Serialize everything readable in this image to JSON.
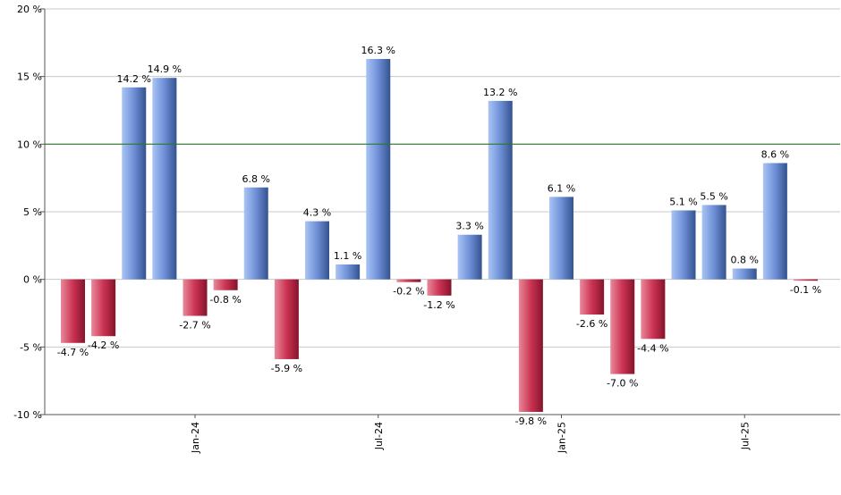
{
  "chart_data": {
    "type": "bar",
    "title": "",
    "xlabel": "",
    "ylabel": "",
    "ylim": [
      -10,
      20
    ],
    "y_ticks": [
      -10,
      -5,
      0,
      5,
      10,
      15,
      20
    ],
    "y_tick_labels": [
      "-10 %",
      "-5 %",
      "0 %",
      "5 %",
      "10 %",
      "15 %",
      "20 %"
    ],
    "reference_line": {
      "value": 10,
      "color": "#2a7a2a"
    },
    "grid": true,
    "legend": "none",
    "x_tick_labels": [
      {
        "label": "Jan-24",
        "bar_index": 4
      },
      {
        "label": "Jul-24",
        "bar_index": 10
      },
      {
        "label": "Jan-25",
        "bar_index": 16
      },
      {
        "label": "Jul-25",
        "bar_index": 22
      }
    ],
    "values": [
      -4.7,
      -4.2,
      14.2,
      14.9,
      -2.7,
      -0.8,
      6.8,
      -5.9,
      4.3,
      1.1,
      16.3,
      -0.2,
      -1.2,
      3.3,
      13.2,
      -9.8,
      6.1,
      -2.6,
      -7.0,
      -4.4,
      5.1,
      5.5,
      0.8,
      8.6,
      -0.1
    ],
    "labels": [
      "-4.7 %",
      "-4.2 %",
      "14.2 %",
      "14.9 %",
      "-2.7 %",
      "-0.8 %",
      "6.8 %",
      "-5.9 %",
      "4.3 %",
      "1.1 %",
      "16.3 %",
      "-0.2 %",
      "-1.2 %",
      "3.3 %",
      "13.2 %",
      "-9.8 %",
      "6.1 %",
      "-2.6 %",
      "-7.0 %",
      "-4.4 %",
      "5.1 %",
      "5.5 %",
      "0.8 %",
      "8.6 %",
      "-0.1 %"
    ],
    "colors": {
      "positive": "#5a7bbf",
      "negative": "#b8243f"
    }
  }
}
